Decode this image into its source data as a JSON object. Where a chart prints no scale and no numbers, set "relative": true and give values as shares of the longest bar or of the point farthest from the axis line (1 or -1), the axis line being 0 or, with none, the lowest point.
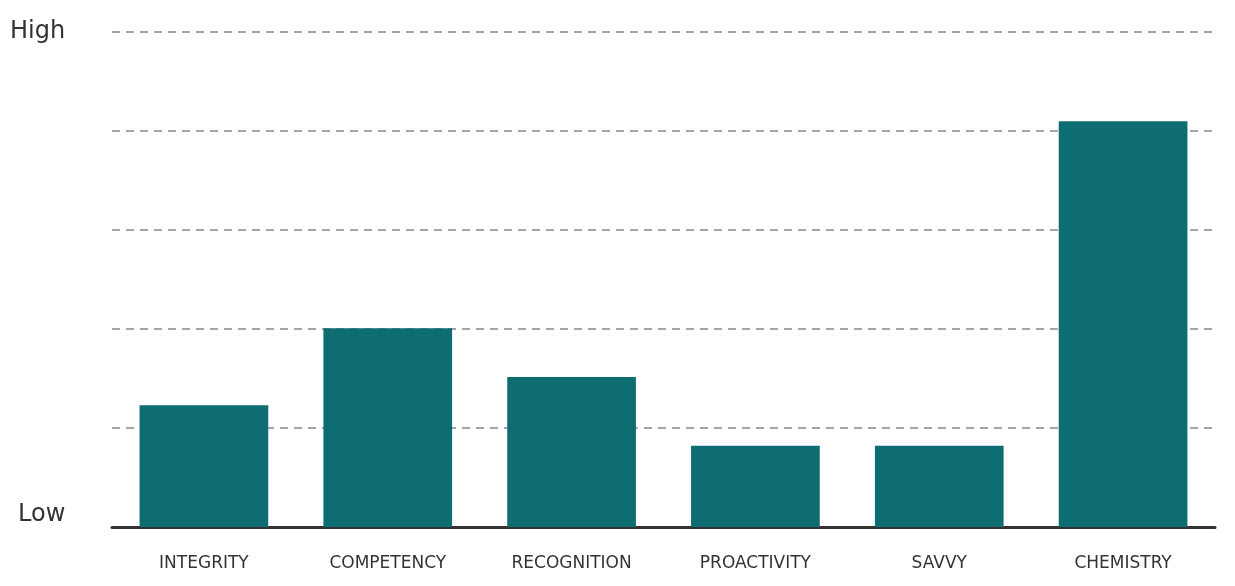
{
  "chart_data": {
    "type": "bar",
    "categories": [
      "INTEGRITY",
      "COMPETENCY",
      "RECOGNITION",
      "PROACTIVITY",
      "SAVVY",
      "CHEMISTRY"
    ],
    "values": [
      0.3,
      0.49,
      0.37,
      0.2,
      0.2,
      1
    ],
    "color": "#0e6d73",
    "relative": true,
    "grid": "y",
    "annotations": [
      "High",
      "Low"
    ]
  }
}
